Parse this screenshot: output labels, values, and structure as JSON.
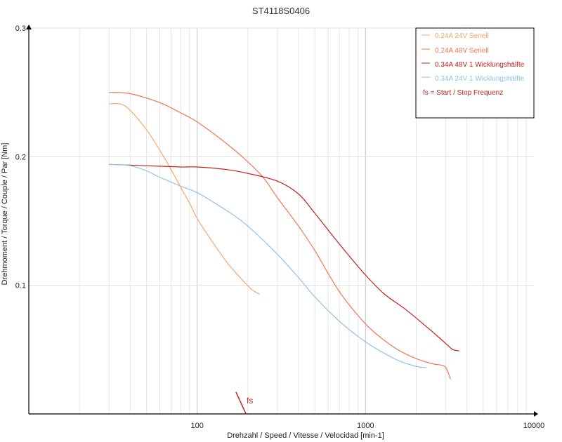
{
  "chart_data": {
    "type": "line",
    "title": "ST4118S0406",
    "xlabel": "Drehzahl / Speed / Vitesse / Velocidad [min-1]",
    "ylabel": "Drehmoment / Torque / Couple / Par [Nm]",
    "xscale": "log",
    "xlim": [
      10,
      10000
    ],
    "ylim": [
      0,
      0.3
    ],
    "x_ticks": [
      100,
      1000,
      10000
    ],
    "x_tick_labels": [
      "100",
      "1000",
      "10000"
    ],
    "y_ticks": [
      0.1,
      0.2,
      0.3
    ],
    "y_tick_labels": [
      "0.1",
      "0.2",
      "0.3"
    ],
    "grid": true,
    "legend_position": "top-right",
    "series": [
      {
        "name": "0.24A  24V  Seriell",
        "color": "#f5a86a",
        "points": [
          [
            30,
            0.241
          ],
          [
            35,
            0.241
          ],
          [
            40,
            0.236
          ],
          [
            50,
            0.221
          ],
          [
            60,
            0.205
          ],
          [
            70,
            0.19
          ],
          [
            80,
            0.176
          ],
          [
            90,
            0.164
          ],
          [
            100,
            0.152
          ],
          [
            120,
            0.136
          ],
          [
            150,
            0.118
          ],
          [
            180,
            0.106
          ],
          [
            210,
            0.097
          ],
          [
            235,
            0.093
          ]
        ]
      },
      {
        "name": "0.24A  48V  Seriell",
        "color": "#f0784f",
        "points": [
          [
            30,
            0.25
          ],
          [
            40,
            0.249
          ],
          [
            60,
            0.242
          ],
          [
            80,
            0.234
          ],
          [
            100,
            0.227
          ],
          [
            150,
            0.21
          ],
          [
            200,
            0.196
          ],
          [
            250,
            0.183
          ],
          [
            300,
            0.168
          ],
          [
            400,
            0.146
          ],
          [
            500,
            0.127
          ],
          [
            700,
            0.095
          ],
          [
            1000,
            0.07
          ],
          [
            1300,
            0.057
          ],
          [
            1600,
            0.049
          ],
          [
            2000,
            0.043
          ],
          [
            2500,
            0.039
          ],
          [
            2800,
            0.038
          ],
          [
            3000,
            0.036
          ],
          [
            3200,
            0.027
          ]
        ]
      },
      {
        "name": "0.34A  48V  1 Wicklungshälfte",
        "color": "#c81e1e",
        "points": [
          [
            30,
            0.194
          ],
          [
            50,
            0.193
          ],
          [
            80,
            0.192
          ],
          [
            100,
            0.192
          ],
          [
            150,
            0.19
          ],
          [
            200,
            0.187
          ],
          [
            300,
            0.181
          ],
          [
            400,
            0.171
          ],
          [
            500,
            0.156
          ],
          [
            700,
            0.132
          ],
          [
            1000,
            0.108
          ],
          [
            1300,
            0.093
          ],
          [
            1700,
            0.082
          ],
          [
            2200,
            0.07
          ],
          [
            2700,
            0.06
          ],
          [
            3100,
            0.053
          ],
          [
            3300,
            0.05
          ],
          [
            3600,
            0.049
          ]
        ]
      },
      {
        "name": "0.34A  24V  1 Wicklungshälfte",
        "color": "#8fc3e6",
        "points": [
          [
            30,
            0.194
          ],
          [
            40,
            0.193
          ],
          [
            50,
            0.189
          ],
          [
            60,
            0.184
          ],
          [
            80,
            0.177
          ],
          [
            100,
            0.172
          ],
          [
            150,
            0.158
          ],
          [
            200,
            0.146
          ],
          [
            300,
            0.124
          ],
          [
            400,
            0.106
          ],
          [
            500,
            0.091
          ],
          [
            700,
            0.072
          ],
          [
            1000,
            0.056
          ],
          [
            1300,
            0.047
          ],
          [
            1600,
            0.041
          ],
          [
            2000,
            0.037
          ],
          [
            2300,
            0.036
          ]
        ]
      }
    ],
    "legend_note": "fs = Start / Stop Frequenz",
    "annotation": {
      "text": "fs",
      "color": "#c81e1e",
      "from": [
        170,
        0.017
      ],
      "to": [
        195,
        0.0
      ]
    }
  }
}
